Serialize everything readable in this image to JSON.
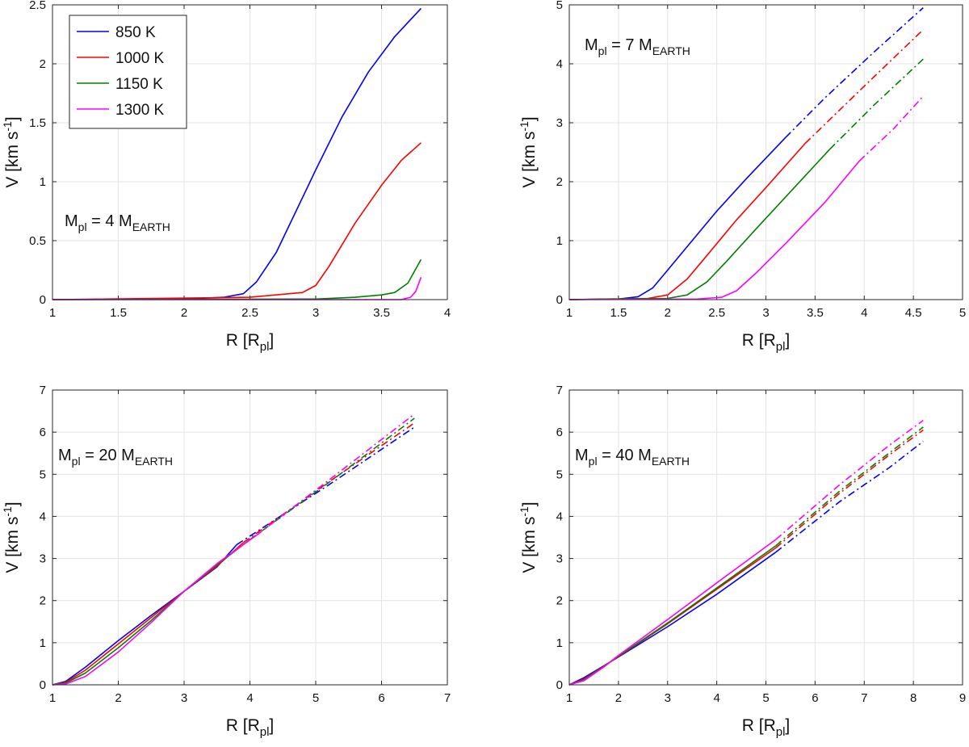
{
  "colors": {
    "850 K": "#0000ff",
    "1000 K": "#ff0000",
    "1150 K": "#008000",
    "1300 K": "#ff00ff"
  },
  "labels": {
    "x_main": "R [R",
    "x_sub": "pl",
    "x_close": "]",
    "y_main": "V [km s",
    "y_sup": "-1",
    "y_close": "]"
  },
  "chart_data": [
    {
      "type": "line",
      "annotation": {
        "main": "M",
        "sub": "pl",
        "mid": " = 4 M",
        "sub2": "EARTH"
      },
      "xlim": [
        1,
        4
      ],
      "ylim": [
        0,
        2.5
      ],
      "xticks": [
        "1",
        "1.5",
        "2",
        "2.5",
        "3",
        "3.5",
        "4"
      ],
      "yticks": [
        "0",
        "0.5",
        "1",
        "1.5",
        "2",
        "2.5"
      ],
      "legend": [
        "850 K",
        "1000 K",
        "1150 K",
        "1300 K"
      ],
      "series": [
        {
          "name": "850 K",
          "solid": [
            [
              1,
              0
            ],
            [
              2,
              0.005
            ],
            [
              2.3,
              0.02
            ],
            [
              2.45,
              0.05
            ],
            [
              2.55,
              0.15
            ],
            [
              2.7,
              0.4
            ],
            [
              2.85,
              0.75
            ],
            [
              3,
              1.1
            ],
            [
              3.2,
              1.55
            ],
            [
              3.4,
              1.93
            ],
            [
              3.6,
              2.23
            ],
            [
              3.8,
              2.47
            ]
          ],
          "dashdot": []
        },
        {
          "name": "1000 K",
          "solid": [
            [
              1,
              0
            ],
            [
              2.5,
              0.02
            ],
            [
              2.9,
              0.06
            ],
            [
              3,
              0.12
            ],
            [
              3.1,
              0.28
            ],
            [
              3.3,
              0.65
            ],
            [
              3.5,
              0.97
            ],
            [
              3.65,
              1.18
            ],
            [
              3.8,
              1.33
            ]
          ],
          "dashdot": []
        },
        {
          "name": "1150 K",
          "solid": [
            [
              1,
              0
            ],
            [
              3,
              0.005
            ],
            [
              3.3,
              0.02
            ],
            [
              3.5,
              0.04
            ],
            [
              3.6,
              0.06
            ],
            [
              3.7,
              0.14
            ],
            [
              3.8,
              0.34
            ]
          ],
          "dashdot": []
        },
        {
          "name": "1300 K",
          "solid": [
            [
              1,
              0
            ],
            [
              3.65,
              0
            ],
            [
              3.72,
              0.02
            ],
            [
              3.76,
              0.07
            ],
            [
              3.8,
              0.19
            ]
          ],
          "dashdot": []
        }
      ]
    },
    {
      "type": "line",
      "annotation": {
        "main": "M",
        "sub": "pl",
        "mid": " = 7 M",
        "sub2": "EARTH"
      },
      "xlim": [
        1,
        5
      ],
      "ylim": [
        0,
        5
      ],
      "xticks": [
        "1",
        "1.5",
        "2",
        "2.5",
        "3",
        "3.5",
        "4",
        "4.5",
        "5"
      ],
      "yticks": [
        "0",
        "1",
        "2",
        "3",
        "4",
        "5"
      ],
      "legend": [],
      "series": [
        {
          "name": "850 K",
          "solid": [
            [
              1,
              0
            ],
            [
              1.5,
              0.01
            ],
            [
              1.7,
              0.05
            ],
            [
              1.85,
              0.2
            ],
            [
              2,
              0.5
            ],
            [
              2.2,
              0.9
            ],
            [
              2.5,
              1.5
            ],
            [
              2.8,
              2.05
            ],
            [
              3.2,
              2.75
            ]
          ],
          "dashdot": [
            [
              3.2,
              2.75
            ],
            [
              3.6,
              3.42
            ],
            [
              4.1,
              4.2
            ],
            [
              4.6,
              4.95
            ]
          ]
        },
        {
          "name": "1000 K",
          "solid": [
            [
              1,
              0
            ],
            [
              1.8,
              0.02
            ],
            [
              2,
              0.08
            ],
            [
              2.2,
              0.35
            ],
            [
              2.4,
              0.75
            ],
            [
              2.7,
              1.35
            ],
            [
              3,
              1.9
            ],
            [
              3.4,
              2.65
            ]
          ],
          "dashdot": [
            [
              3.4,
              2.65
            ],
            [
              4,
              3.62
            ],
            [
              4.6,
              4.58
            ]
          ]
        },
        {
          "name": "1150 K",
          "solid": [
            [
              1,
              0
            ],
            [
              2,
              0.02
            ],
            [
              2.2,
              0.08
            ],
            [
              2.4,
              0.3
            ],
            [
              2.6,
              0.65
            ],
            [
              2.9,
              1.2
            ],
            [
              3.3,
              1.92
            ],
            [
              3.65,
              2.55
            ]
          ],
          "dashdot": [
            [
              3.65,
              2.55
            ],
            [
              4.1,
              3.3
            ],
            [
              4.6,
              4.08
            ]
          ]
        },
        {
          "name": "1300 K",
          "solid": [
            [
              1,
              0
            ],
            [
              2.3,
              0.01
            ],
            [
              2.55,
              0.04
            ],
            [
              2.7,
              0.15
            ],
            [
              2.9,
              0.45
            ],
            [
              3.2,
              0.95
            ],
            [
              3.6,
              1.65
            ],
            [
              3.95,
              2.35
            ]
          ],
          "dashdot": [
            [
              3.95,
              2.35
            ],
            [
              4.3,
              2.9
            ],
            [
              4.6,
              3.45
            ]
          ]
        }
      ]
    },
    {
      "type": "line",
      "annotation": {
        "main": "M",
        "sub": "pl",
        "mid": " = 20 M",
        "sub2": "EARTH"
      },
      "xlim": [
        1,
        7
      ],
      "ylim": [
        0,
        7
      ],
      "xticks": [
        "1",
        "2",
        "3",
        "4",
        "5",
        "6",
        "7"
      ],
      "yticks": [
        "0",
        "1",
        "2",
        "3",
        "4",
        "5",
        "6",
        "7"
      ],
      "legend": [],
      "series": [
        {
          "name": "850 K",
          "solid": [
            [
              1,
              0
            ],
            [
              1.2,
              0.08
            ],
            [
              1.5,
              0.42
            ],
            [
              2,
              1.05
            ],
            [
              2.5,
              1.65
            ],
            [
              3,
              2.22
            ],
            [
              3.5,
              2.8
            ],
            [
              3.8,
              3.33
            ]
          ],
          "dashdot": [
            [
              3.8,
              3.33
            ],
            [
              5.2,
              4.75
            ],
            [
              6.5,
              6.12
            ]
          ]
        },
        {
          "name": "1000 K",
          "solid": [
            [
              1,
              0
            ],
            [
              1.2,
              0.06
            ],
            [
              1.5,
              0.35
            ],
            [
              2,
              0.97
            ],
            [
              2.5,
              1.6
            ],
            [
              3,
              2.22
            ],
            [
              3.5,
              2.82
            ],
            [
              3.9,
              3.38
            ]
          ],
          "dashdot": [
            [
              3.9,
              3.38
            ],
            [
              5.2,
              4.82
            ],
            [
              6.5,
              6.22
            ]
          ]
        },
        {
          "name": "1150 K",
          "solid": [
            [
              1,
              0
            ],
            [
              1.2,
              0.04
            ],
            [
              1.5,
              0.28
            ],
            [
              2,
              0.88
            ],
            [
              2.5,
              1.53
            ],
            [
              3,
              2.22
            ],
            [
              3.5,
              2.85
            ],
            [
              4,
              3.45
            ]
          ],
          "dashdot": [
            [
              4,
              3.45
            ],
            [
              5.3,
              4.92
            ],
            [
              6.5,
              6.33
            ]
          ]
        },
        {
          "name": "1300 K",
          "solid": [
            [
              1,
              0
            ],
            [
              1.2,
              0.02
            ],
            [
              1.5,
              0.2
            ],
            [
              2,
              0.78
            ],
            [
              2.5,
              1.48
            ],
            [
              3,
              2.22
            ],
            [
              3.5,
              2.88
            ],
            [
              4.1,
              3.55
            ]
          ],
          "dashdot": [
            [
              4.1,
              3.55
            ],
            [
              5.3,
              4.98
            ],
            [
              6.5,
              6.43
            ]
          ]
        }
      ]
    },
    {
      "type": "line",
      "annotation": {
        "main": "M",
        "sub": "pl",
        "mid": " = 40 M",
        "sub2": "EARTH"
      },
      "xlim": [
        1,
        9
      ],
      "ylim": [
        0,
        7
      ],
      "xticks": [
        "1",
        "2",
        "3",
        "4",
        "5",
        "6",
        "7",
        "8",
        "9"
      ],
      "yticks": [
        "0",
        "1",
        "2",
        "3",
        "4",
        "5",
        "6",
        "7"
      ],
      "legend": [],
      "series": [
        {
          "name": "850 K",
          "solid": [
            [
              1,
              0
            ],
            [
              1.3,
              0.17
            ],
            [
              1.7,
              0.45
            ],
            [
              2,
              0.66
            ],
            [
              3,
              1.38
            ],
            [
              4,
              2.15
            ],
            [
              5.2,
              3.15
            ]
          ],
          "dashdot": [
            [
              5.2,
              3.15
            ],
            [
              6.5,
              4.35
            ],
            [
              7.5,
              5.15
            ],
            [
              8.2,
              5.78
            ]
          ]
        },
        {
          "name": "1000 K",
          "solid": [
            [
              1,
              0
            ],
            [
              1.3,
              0.14
            ],
            [
              1.7,
              0.44
            ],
            [
              2,
              0.67
            ],
            [
              3,
              1.45
            ],
            [
              4,
              2.27
            ],
            [
              5.2,
              3.25
            ]
          ],
          "dashdot": [
            [
              5.2,
              3.25
            ],
            [
              6.5,
              4.55
            ],
            [
              7.5,
              5.45
            ],
            [
              8.2,
              6.05
            ]
          ]
        },
        {
          "name": "1150 K",
          "solid": [
            [
              1,
              0
            ],
            [
              1.3,
              0.12
            ],
            [
              1.7,
              0.43
            ],
            [
              2,
              0.68
            ],
            [
              3,
              1.47
            ],
            [
              4,
              2.3
            ],
            [
              5.2,
              3.3
            ]
          ],
          "dashdot": [
            [
              5.2,
              3.3
            ],
            [
              6.5,
              4.6
            ],
            [
              7.5,
              5.5
            ],
            [
              8.2,
              6.12
            ]
          ]
        },
        {
          "name": "1300 K",
          "solid": [
            [
              1,
              0
            ],
            [
              1.3,
              0.1
            ],
            [
              1.7,
              0.42
            ],
            [
              2,
              0.7
            ],
            [
              3,
              1.55
            ],
            [
              4,
              2.42
            ],
            [
              5.2,
              3.45
            ]
          ],
          "dashdot": [
            [
              5.2,
              3.45
            ],
            [
              6.5,
              4.75
            ],
            [
              7.5,
              5.68
            ],
            [
              8.2,
              6.28
            ]
          ]
        }
      ]
    }
  ]
}
